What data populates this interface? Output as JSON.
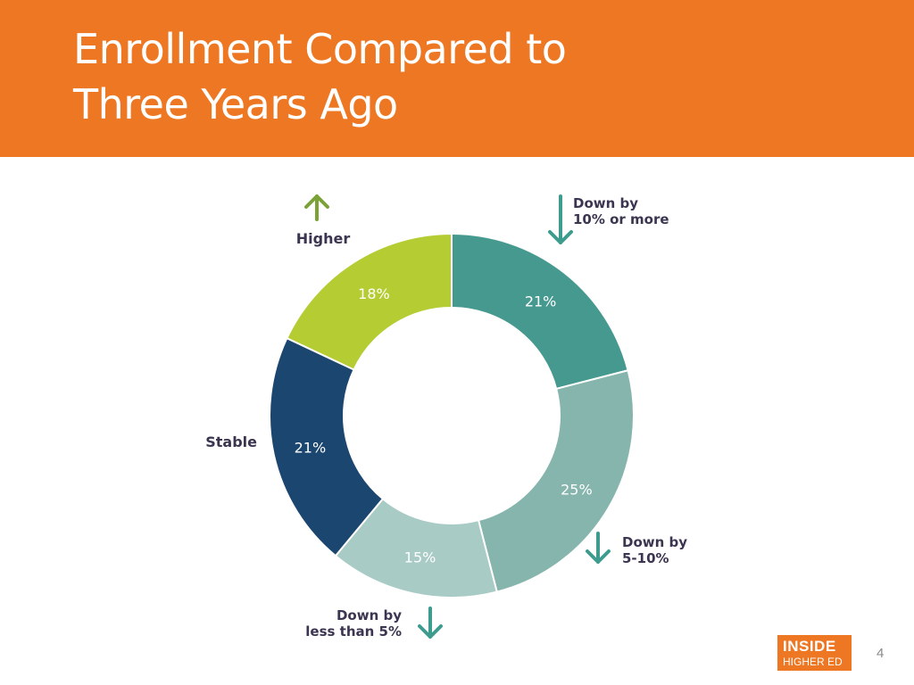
{
  "slide": {
    "title_line1": "Enrollment Compared to",
    "title_line2": "Three Years Ago",
    "page_number": "4",
    "logo_line1": "INSIDE",
    "logo_line2": "HIGHER ED"
  },
  "colors": {
    "header": "#ed7722",
    "down_10_or_more": "#46998f",
    "down_5_10": "#86b5ad",
    "down_less_5": "#a9cbc5",
    "stable": "#1b4670",
    "higher": "#b5cd33",
    "arrow_down": "#3e9c8f",
    "arrow_up": "#7aa236"
  },
  "chart_data": {
    "type": "donut",
    "slices": [
      {
        "label": "Down by 10% or more",
        "label_lines": [
          "Down by",
          "10% or more"
        ],
        "value": 21,
        "value_label": "21%",
        "color": "#46998f",
        "arrow": "down"
      },
      {
        "label": "Down by 5-10%",
        "label_lines": [
          "Down by",
          "5-10%"
        ],
        "value": 25,
        "value_label": "25%",
        "color": "#86b5ad",
        "arrow": "down"
      },
      {
        "label": "Down by less than 5%",
        "label_lines": [
          "Down by",
          "less than 5%"
        ],
        "value": 15,
        "value_label": "15%",
        "color": "#a9cbc5",
        "arrow": "down"
      },
      {
        "label": "Stable",
        "label_lines": [
          "Stable"
        ],
        "value": 21,
        "value_label": "21%",
        "color": "#1b4670",
        "arrow": "none"
      },
      {
        "label": "Higher",
        "label_lines": [
          "Higher"
        ],
        "value": 18,
        "value_label": "18%",
        "color": "#b5cd33",
        "arrow": "up"
      }
    ]
  }
}
